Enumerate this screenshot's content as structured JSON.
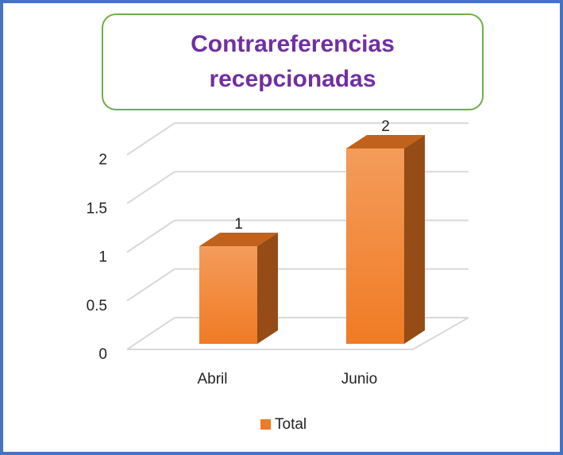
{
  "chart_data": {
    "type": "bar3d",
    "title": "Contrareferencias recepcionadas",
    "categories": [
      "Abril",
      "Junio"
    ],
    "series": [
      {
        "name": "Total",
        "color": "#f07b24",
        "values": [
          1,
          2
        ]
      }
    ],
    "ylim": [
      0,
      2
    ],
    "yticks": [
      0,
      0.5,
      1,
      1.5,
      2
    ],
    "grid": true,
    "legend": "bottom"
  }
}
